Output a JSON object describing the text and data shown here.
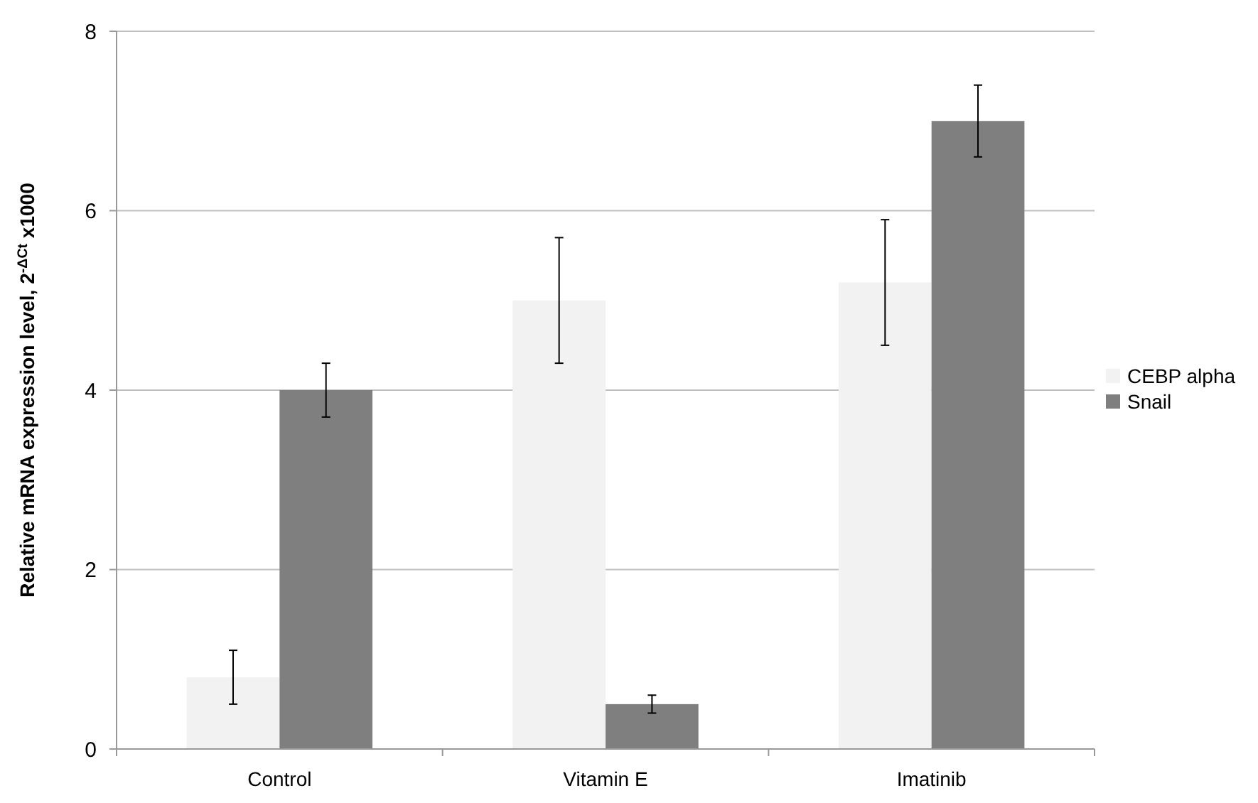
{
  "chart_data": {
    "type": "bar",
    "ylabel": "Relative mRNA expression level, 2$^{-ΔCt}$ x1000",
    "categories": [
      "Control",
      "Vitamin E",
      "Imatinib"
    ],
    "series": [
      {
        "name": "CEBP alpha",
        "color": "#f2f2f2",
        "values": [
          0.8,
          5,
          5.2
        ],
        "errors": [
          0.3,
          0.7,
          0.7
        ]
      },
      {
        "name": "Snail",
        "color": "#7f7f7f",
        "values": [
          4,
          0.5,
          7
        ],
        "errors": [
          0.3,
          0.1,
          0.4
        ]
      }
    ],
    "ylim": [
      0,
      8
    ],
    "yticks": [
      0,
      2,
      4,
      6,
      8
    ],
    "grid": "y",
    "legend": "right"
  }
}
